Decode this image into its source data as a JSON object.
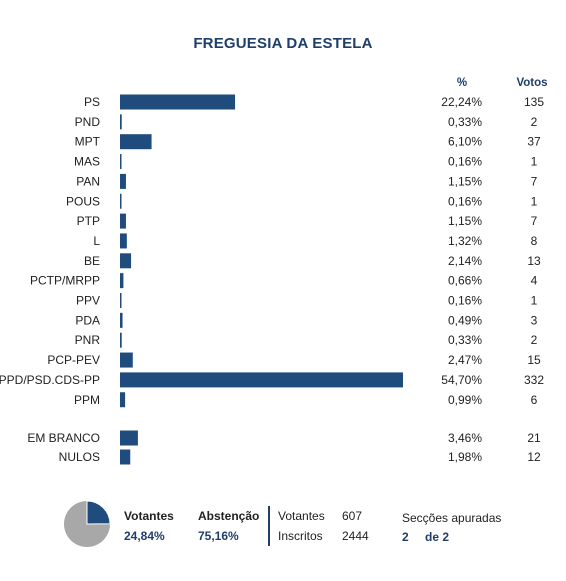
{
  "title": "FREGUESIA DA ESTELA",
  "colors": {
    "bar": "#1f4b7d",
    "pie_dark": "#1f4b7d",
    "pie_light": "#a8a8a8",
    "accent": "#1f3e6b"
  },
  "headers": {
    "pct": "%",
    "votes": "Votos"
  },
  "chart_data": {
    "type": "bar",
    "orientation": "horizontal",
    "categories": [
      "PS",
      "PND",
      "MPT",
      "MAS",
      "PAN",
      "POUS",
      "PTP",
      "L",
      "BE",
      "PCTP/MRPP",
      "PPV",
      "PDA",
      "PNR",
      "PCP-PEV",
      "PPD/PSD.CDS-PP",
      "PPM",
      "EM BRANCO",
      "NULOS"
    ],
    "values": [
      22.24,
      0.33,
      6.1,
      0.16,
      1.15,
      0.16,
      1.15,
      1.32,
      2.14,
      0.66,
      0.16,
      0.49,
      0.33,
      2.47,
      54.7,
      0.99,
      3.46,
      1.98
    ],
    "pct_labels": [
      "22,24%",
      "0,33%",
      "6,10%",
      "0,16%",
      "1,15%",
      "0,16%",
      "1,15%",
      "1,32%",
      "2,14%",
      "0,66%",
      "0,16%",
      "0,49%",
      "0,33%",
      "2,47%",
      "54,70%",
      "0,99%",
      "3,46%",
      "1,98%"
    ],
    "votes": [
      "135",
      "2",
      "37",
      "1",
      "7",
      "1",
      "7",
      "8",
      "13",
      "4",
      "1",
      "3",
      "2",
      "15",
      "332",
      "6",
      "21",
      "12"
    ],
    "xlim": [
      0,
      54.7
    ]
  },
  "summary": {
    "votantes_label": "Votantes",
    "votantes_pct": "24,84%",
    "abstencao_label": "Abstenção",
    "abstencao_pct": "75,16%",
    "votantes_count_label": "Votantes",
    "votantes_count": "607",
    "inscritos_label": "Inscritos",
    "inscritos_count": "2444",
    "seccoes_label": "Secções apuradas",
    "seccoes_done": "2",
    "seccoes_total": "de 2",
    "turnout_fraction": 0.2484
  }
}
